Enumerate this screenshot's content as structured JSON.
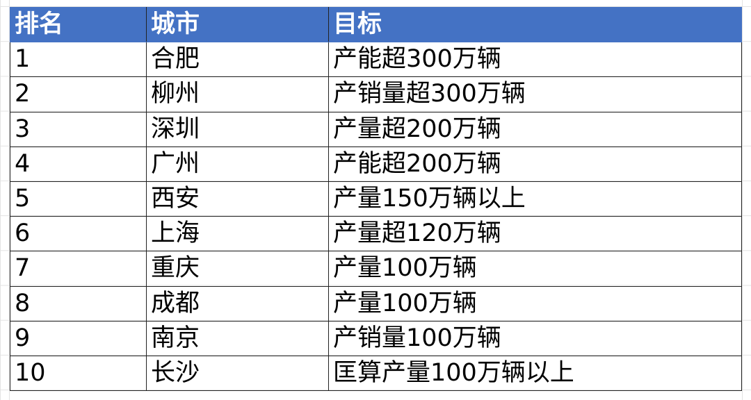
{
  "header_color": "#4472c4",
  "columns": [
    "排名",
    "城市",
    "目标"
  ],
  "rows": [
    [
      "1",
      "合肥",
      "产能超300万辆"
    ],
    [
      "2",
      "柳州",
      "产销量超300万辆"
    ],
    [
      "3",
      "深圳",
      "产量超200万辆"
    ],
    [
      "4",
      "广州",
      "产能超200万辆"
    ],
    [
      "5",
      "西安",
      "产量150万辆以上"
    ],
    [
      "6",
      "上海",
      "产量超120万辆"
    ],
    [
      "7",
      "重庆",
      "产量100万辆"
    ],
    [
      "8",
      "成都",
      "产量100万辆"
    ],
    [
      "9",
      "南京",
      "产销量100万辆"
    ],
    [
      "10",
      "长沙",
      "匡算产量100万辆以上"
    ]
  ]
}
